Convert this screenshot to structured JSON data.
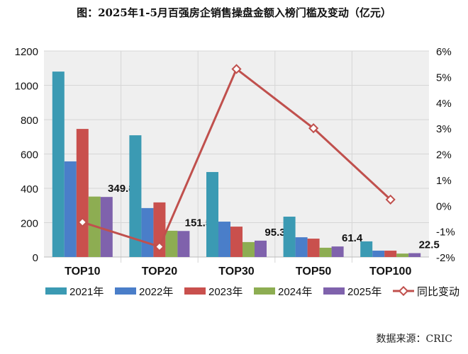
{
  "chart_data": {
    "type": "bar+line",
    "title": "图：2025年1-5月百强房企销售操盘金额入榜门槛及变动（亿元）",
    "categories": [
      "TOP10",
      "TOP20",
      "TOP30",
      "TOP50",
      "TOP100"
    ],
    "series": [
      {
        "name": "2021年",
        "type": "bar",
        "axis": "left",
        "color": "#3b9ab3",
        "values": [
          1080,
          709,
          495,
          235,
          91
        ]
      },
      {
        "name": "2022年",
        "type": "bar",
        "axis": "left",
        "color": "#4a7ec9",
        "values": [
          557,
          285,
          206,
          115,
          37
        ]
      },
      {
        "name": "2023年",
        "type": "bar",
        "axis": "left",
        "color": "#c9504d",
        "values": [
          746,
          318,
          177,
          107,
          37
        ]
      },
      {
        "name": "2024年",
        "type": "bar",
        "axis": "left",
        "color": "#8dad52",
        "values": [
          352,
          153,
          87,
          54,
          20
        ]
      },
      {
        "name": "2025年",
        "type": "bar",
        "axis": "left",
        "color": "#7f62ac",
        "values": [
          349.8,
          151.5,
          95.3,
          61.4,
          22.5
        ],
        "data_labels": [
          "349.8",
          "151.5",
          "95.3",
          "61.4",
          "22.5"
        ]
      },
      {
        "name": "同比变动",
        "type": "line",
        "axis": "right",
        "color": "#c0504d",
        "values": [
          -0.65,
          -1.6,
          5.3,
          3.0,
          0.23
        ]
      }
    ],
    "left_axis": {
      "ylim": [
        0,
        1200
      ],
      "ticks": [
        "0",
        "200",
        "400",
        "600",
        "800",
        "1000",
        "1200"
      ]
    },
    "right_axis": {
      "ylim": [
        -2,
        6
      ],
      "ticks": [
        "-2%",
        "-1%",
        "0%",
        "1%",
        "2%",
        "3%",
        "4%",
        "5%",
        "6%"
      ]
    },
    "grid": true,
    "legend": "bottom"
  },
  "source": "数据来源：CRIC"
}
